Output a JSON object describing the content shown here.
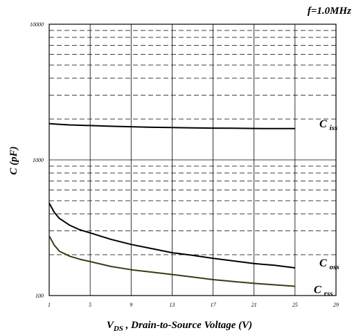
{
  "chart_data": {
    "type": "line",
    "annotation": "f=1.0MHz",
    "xlabel_prefix": "V",
    "xlabel_sub": "DS",
    "xlabel_suffix": " , Drain-to-Source Voltage (V)",
    "ylabel": "C (pF)",
    "x_ticks": [
      "1",
      "5",
      "9",
      "13",
      "17",
      "21",
      "25",
      "29"
    ],
    "y_ticks": [
      "100",
      "1000",
      "10000"
    ],
    "xlim": [
      1,
      29
    ],
    "ylim": [
      100,
      10000
    ],
    "y_scale": "log",
    "grid": true,
    "series": [
      {
        "main": "C",
        "sub": "iss",
        "color": "#000000",
        "x": [
          1,
          2,
          3,
          5,
          7,
          9,
          11,
          13,
          15,
          17,
          19,
          21,
          23,
          25
        ],
        "values": [
          1850,
          1830,
          1810,
          1790,
          1770,
          1755,
          1740,
          1730,
          1720,
          1715,
          1710,
          1705,
          1700,
          1700
        ]
      },
      {
        "main": "C",
        "sub": "oss",
        "color": "#000000",
        "x": [
          1,
          1.5,
          2,
          3,
          4,
          5,
          7,
          9,
          11,
          13,
          15,
          17,
          19,
          21,
          23,
          25
        ],
        "values": [
          480,
          410,
          370,
          330,
          305,
          290,
          260,
          238,
          222,
          207,
          198,
          188,
          180,
          172,
          167,
          160
        ]
      },
      {
        "main": "C",
        "sub": "rss",
        "color": "#3a3a12",
        "x": [
          1,
          1.5,
          2,
          3,
          4,
          5,
          7,
          9,
          11,
          13,
          15,
          17,
          19,
          21,
          23,
          25
        ],
        "values": [
          275,
          235,
          212,
          195,
          185,
          178,
          164,
          155,
          149,
          143,
          137,
          131,
          127,
          123,
          120,
          117
        ]
      }
    ]
  }
}
